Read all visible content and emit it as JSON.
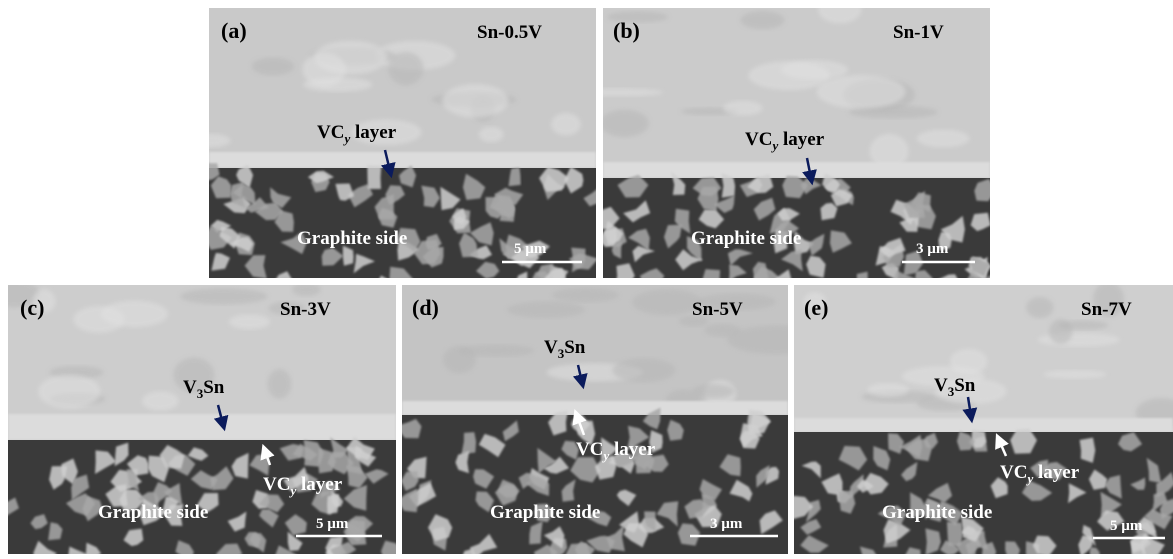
{
  "panels": [
    {
      "label": "(a)",
      "sample": "Sn-0.5V",
      "annotations": [
        {
          "main": "VC",
          "sub": "y",
          "rest": " layer"
        }
      ],
      "region_label": "Graphite side",
      "scale_bar": "5 µm"
    },
    {
      "label": "(b)",
      "sample": "Sn-1V",
      "annotations": [
        {
          "main": "VC",
          "sub": "y",
          "rest": " layer"
        }
      ],
      "region_label": "Graphite side",
      "scale_bar": "3 µm"
    },
    {
      "label": "(c)",
      "sample": "Sn-3V",
      "annotations": [
        {
          "main": "V",
          "sub": "3",
          "rest": "Sn"
        },
        {
          "main": "VC",
          "sub": "y",
          "rest": " layer"
        }
      ],
      "region_label": "Graphite side",
      "scale_bar": "5 µm"
    },
    {
      "label": "(d)",
      "sample": "Sn-5V",
      "annotations": [
        {
          "main": "V",
          "sub": "3",
          "rest": "Sn"
        },
        {
          "main": "VC",
          "sub": "y",
          "rest": " layer"
        }
      ],
      "region_label": "Graphite side",
      "scale_bar": "3 µm"
    },
    {
      "label": "(e)",
      "sample": "Sn-7V",
      "annotations": [
        {
          "main": "V",
          "sub": "3",
          "rest": "Sn"
        },
        {
          "main": "VC",
          "sub": "y",
          "rest": " layer"
        }
      ],
      "region_label": "Graphite side",
      "scale_bar": "5 µm"
    }
  ]
}
